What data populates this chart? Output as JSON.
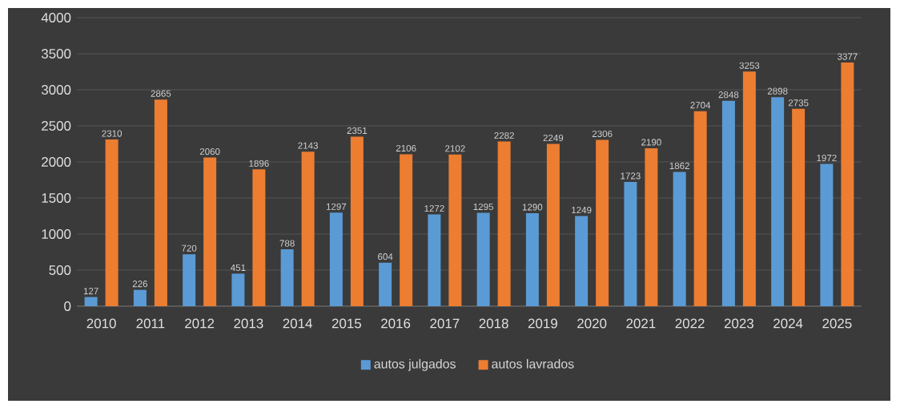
{
  "chart_data": {
    "type": "bar",
    "categories": [
      "2010",
      "2011",
      "2012",
      "2013",
      "2014",
      "2015",
      "2016",
      "2017",
      "2018",
      "2019",
      "2020",
      "2021",
      "2022",
      "2023",
      "2024",
      "2025"
    ],
    "series": [
      {
        "name": "autos julgados",
        "color": "#5b9bd5",
        "values": [
          127,
          226,
          720,
          451,
          788,
          1297,
          604,
          1272,
          1295,
          1290,
          1249,
          1723,
          1862,
          2848,
          2898,
          1972
        ]
      },
      {
        "name": "autos lavrados",
        "color": "#ed7d31",
        "values": [
          2310,
          2865,
          2060,
          1896,
          2143,
          2351,
          2106,
          2102,
          2282,
          2249,
          2306,
          2190,
          2704,
          3253,
          2735,
          3377
        ]
      }
    ],
    "ylim": [
      0,
      4000
    ],
    "yticks": [
      0,
      500,
      1000,
      1500,
      2000,
      2500,
      3000,
      3500,
      4000
    ],
    "grid": "y",
    "legend": "bottom",
    "data_labels": true
  }
}
